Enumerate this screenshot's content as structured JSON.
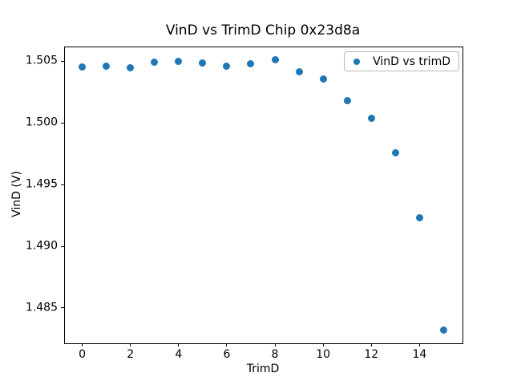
{
  "chart_data": {
    "type": "scatter",
    "title": "VinD vs TrimD Chip 0x23d8a",
    "xlabel": "TrimD",
    "ylabel": "VinD (V)",
    "series": [
      {
        "name": "VinD vs trimD",
        "color": "#1f77b4",
        "x": [
          0,
          1,
          2,
          3,
          4,
          5,
          6,
          7,
          8,
          9,
          10,
          11,
          12,
          13,
          14,
          15
        ],
        "y": [
          1.50452,
          1.50461,
          1.50448,
          1.50495,
          1.505,
          1.50485,
          1.50463,
          1.50479,
          1.50513,
          1.50413,
          1.50357,
          1.50181,
          1.50038,
          1.49757,
          1.4923,
          1.48324
        ]
      }
    ],
    "xlim": [
      -0.75,
      15.75
    ],
    "ylim": [
      1.4822,
      1.5062
    ],
    "xticks": [
      0,
      2,
      4,
      6,
      8,
      10,
      12,
      14
    ],
    "yticks": [
      1.485,
      1.49,
      1.495,
      1.5,
      1.505
    ],
    "ytick_decimals": 3,
    "grid": false,
    "legend": {
      "location": "upper right",
      "label": "VinD vs trimD"
    },
    "colors": {
      "marker": "#1f77b4",
      "spine": "#000000",
      "background": "#ffffff"
    }
  }
}
